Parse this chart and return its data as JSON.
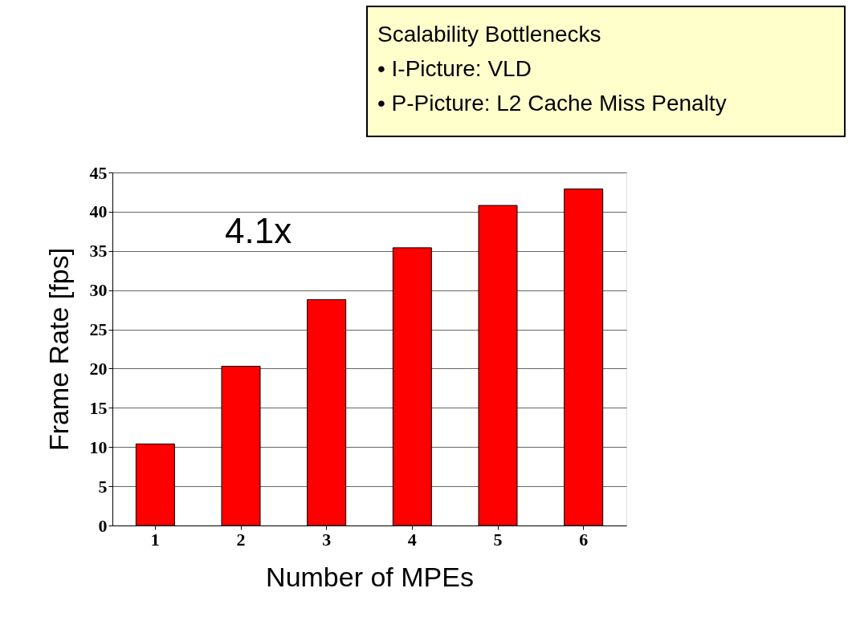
{
  "chart_data": {
    "type": "bar",
    "categories": [
      "1",
      "2",
      "3",
      "4",
      "5",
      "6"
    ],
    "values": [
      10.4,
      20.3,
      28.8,
      35.4,
      40.8,
      42.9
    ],
    "color": "#ff0000",
    "xlabel": "Number of MPEs",
    "ylabel": "Frame Rate  [fps]",
    "ylim": [
      0,
      45
    ],
    "yticks": [
      0,
      5,
      10,
      15,
      20,
      25,
      30,
      35,
      40,
      45
    ],
    "grid": "y",
    "annotations": [
      "4.1x",
      "Scalability Bottlenecks",
      "• I-Picture:  VLD",
      "• P-Picture: L2 Cache Miss Penalty"
    ]
  }
}
